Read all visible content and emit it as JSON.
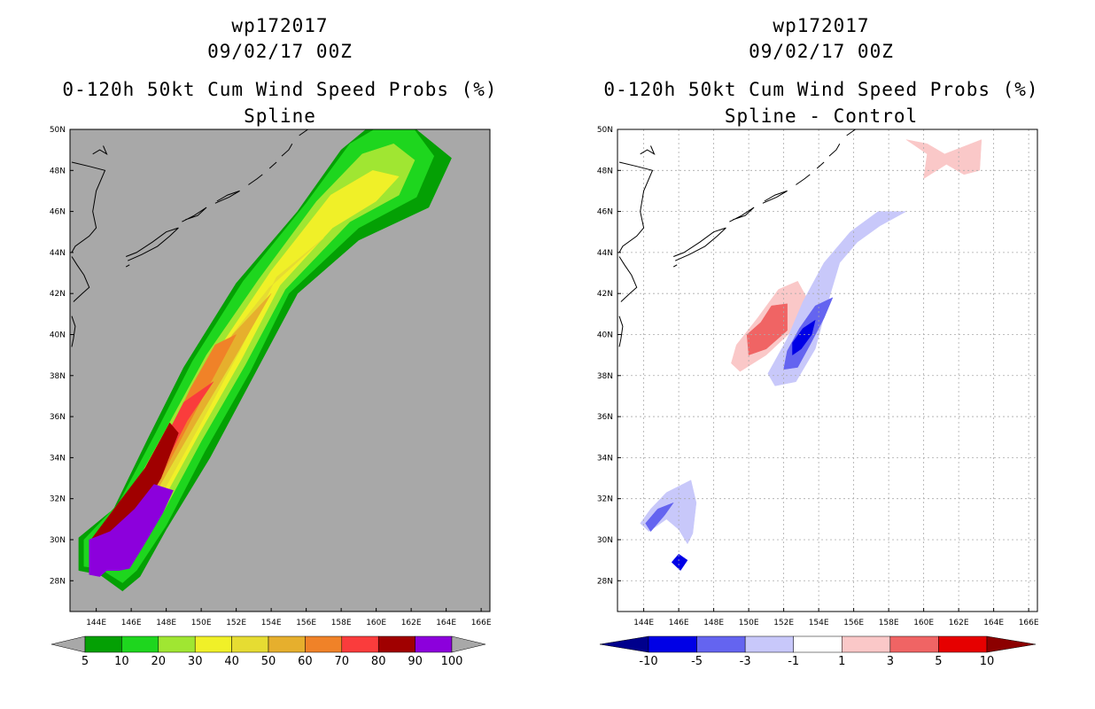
{
  "chart_data": [
    {
      "type": "contour-map",
      "title_lines": [
        "wp172017",
        "09/02/17 00Z",
        "0-120h 50kt Cum Wind Speed Probs (%)",
        "Spline"
      ],
      "lon_ticks": [
        "144E",
        "146E",
        "148E",
        "150E",
        "152E",
        "154E",
        "156E",
        "158E",
        "160E",
        "162E",
        "164E",
        "166E"
      ],
      "lat_ticks": [
        "28N",
        "30N",
        "32N",
        "34N",
        "36N",
        "38N",
        "40N",
        "42N",
        "44N",
        "46N",
        "48N",
        "50N"
      ],
      "lon_range": [
        142.5,
        166.5
      ],
      "lat_range": [
        26.5,
        50.0
      ],
      "background": "#a8a8a8",
      "colorbar": {
        "labels": [
          "5",
          "10",
          "20",
          "30",
          "40",
          "50",
          "60",
          "70",
          "80",
          "90",
          "100"
        ],
        "colors": [
          "#04a004",
          "#1ed61e",
          "#a0e632",
          "#f0f028",
          "#e6dc32",
          "#e6af2d",
          "#f08228",
          "#fa3c3c",
          "#a00000",
          "#8c00dc"
        ]
      },
      "bands": [
        {
          "level": 5,
          "color": "#04a004",
          "polygon": [
            [
              162,
              50.2
            ],
            [
              164.3,
              48.6
            ],
            [
              163,
              46.2
            ],
            [
              159,
              44.6
            ],
            [
              155.5,
              42
            ],
            [
              153,
              38
            ],
            [
              150.5,
              34
            ],
            [
              148,
              30.5
            ],
            [
              146.5,
              28.2
            ],
            [
              145.5,
              27.5
            ],
            [
              144.2,
              28.3
            ],
            [
              143,
              28.5
            ],
            [
              143,
              30.1
            ],
            [
              145,
              31.5
            ],
            [
              147,
              35
            ],
            [
              149,
              38.4
            ],
            [
              152,
              42.5
            ],
            [
              155.5,
              46
            ],
            [
              158,
              49
            ],
            [
              159.7,
              50.2
            ]
          ]
        },
        {
          "level": 10,
          "color": "#1ed61e",
          "polygon": [
            [
              162,
              50.2
            ],
            [
              163.3,
              48.7
            ],
            [
              162.3,
              46.7
            ],
            [
              159,
              45.2
            ],
            [
              155,
              42
            ],
            [
              152.8,
              38.2
            ],
            [
              150.2,
              34.3
            ],
            [
              148,
              30.7
            ],
            [
              146.3,
              28.5
            ],
            [
              145.5,
              27.9
            ],
            [
              144.2,
              28.6
            ],
            [
              143.3,
              28.7
            ],
            [
              143.3,
              30
            ],
            [
              145.3,
              31.8
            ],
            [
              147.4,
              35.2
            ],
            [
              149.5,
              38.7
            ],
            [
              152.4,
              42.6
            ],
            [
              156,
              46.4
            ],
            [
              158.5,
              49.3
            ],
            [
              160.3,
              50.2
            ]
          ]
        },
        {
          "level": 20,
          "color": "#a0e632",
          "polygon": [
            [
              162.2,
              48.5
            ],
            [
              161.3,
              46.8
            ],
            [
              158.5,
              45.5
            ],
            [
              154.8,
              42.2
            ],
            [
              152.5,
              38.5
            ],
            [
              150,
              34.8
            ],
            [
              147.8,
              31.3
            ],
            [
              146,
              29
            ],
            [
              144.4,
              29.2
            ],
            [
              143.6,
              29.9
            ],
            [
              145.8,
              32
            ],
            [
              148,
              35.4
            ],
            [
              150.3,
              39
            ],
            [
              153.3,
              42.7
            ],
            [
              156.6,
              46.5
            ],
            [
              159.2,
              48.8
            ],
            [
              161,
              49.3
            ]
          ]
        },
        {
          "level": 30,
          "color": "#f0f028",
          "polygon": [
            [
              161.3,
              47.7
            ],
            [
              160,
              46.5
            ],
            [
              157.5,
              45.2
            ],
            [
              154.5,
              42.4
            ],
            [
              152.3,
              38.8
            ],
            [
              149.9,
              35.2
            ],
            [
              147.6,
              31.6
            ],
            [
              145.9,
              29.4
            ],
            [
              144.4,
              29.8
            ],
            [
              146.3,
              32.3
            ],
            [
              148.6,
              35.7
            ],
            [
              151,
              39.3
            ],
            [
              154,
              43.1
            ],
            [
              157.4,
              46.8
            ],
            [
              159.8,
              48
            ]
          ]
        },
        {
          "level": 40,
          "color": "#e6dc32",
          "polygon": [
            [
              157,
              44.7
            ],
            [
              154.3,
              42.8
            ],
            [
              152.2,
              39.2
            ],
            [
              150,
              35.7
            ],
            [
              147.6,
              32
            ],
            [
              146,
              29.8
            ],
            [
              145,
              30.2
            ],
            [
              146.9,
              32.8
            ],
            [
              149.2,
              36.2
            ],
            [
              151.4,
              39.6
            ],
            [
              153.9,
              42.3
            ]
          ]
        },
        {
          "level": 50,
          "color": "#e6af2d",
          "polygon": [
            [
              154,
              42
            ],
            [
              152,
              39
            ],
            [
              149.9,
              36
            ],
            [
              147.6,
              32.6
            ],
            [
              146,
              30.3
            ],
            [
              145.4,
              30.4
            ],
            [
              147.4,
              33.2
            ],
            [
              149.6,
              36.7
            ],
            [
              151.8,
              40
            ]
          ]
        },
        {
          "level": 60,
          "color": "#f08228",
          "polygon": [
            [
              152,
              40
            ],
            [
              150,
              36.8
            ],
            [
              147.8,
              33.2
            ],
            [
              146.2,
              30.6
            ],
            [
              145.6,
              30.6
            ],
            [
              147.3,
              33.6
            ],
            [
              149.4,
              37.4
            ],
            [
              150.8,
              39.5
            ]
          ]
        },
        {
          "level": 70,
          "color": "#fa3c3c",
          "polygon": [
            [
              150.7,
              37.7
            ],
            [
              149.2,
              35.8
            ],
            [
              147.4,
              32.8
            ],
            [
              145.6,
              30.3
            ],
            [
              144.6,
              29.8
            ],
            [
              144.2,
              30.2
            ],
            [
              145.4,
              31.3
            ],
            [
              147.2,
              33.7
            ],
            [
              149,
              36.7
            ]
          ]
        },
        {
          "level": 80,
          "color": "#a00000",
          "polygon": [
            [
              148.7,
              35.2
            ],
            [
              147.7,
              33
            ],
            [
              146.2,
              30.8
            ],
            [
              144.2,
              29.8
            ],
            [
              143.7,
              30
            ],
            [
              145.2,
              31.7
            ],
            [
              146.8,
              33.5
            ],
            [
              148.2,
              35.7
            ]
          ]
        },
        {
          "level": 90,
          "color": "#8c00dc",
          "polygon": [
            [
              148.4,
              32.4
            ],
            [
              147.8,
              31.3
            ],
            [
              146.7,
              29.7
            ],
            [
              145.9,
              28.6
            ],
            [
              145.3,
              28.5
            ],
            [
              144.6,
              28.5
            ],
            [
              144.2,
              28.2
            ],
            [
              143.6,
              28.3
            ],
            [
              143.6,
              30
            ],
            [
              144.8,
              30.4
            ],
            [
              146.2,
              31.5
            ],
            [
              147.3,
              32.7
            ]
          ]
        }
      ]
    },
    {
      "type": "contour-map",
      "title_lines": [
        "wp172017",
        "09/02/17 00Z",
        "0-120h 50kt Cum Wind Speed Probs (%)",
        "Spline - Control"
      ],
      "lon_ticks": [
        "144E",
        "146E",
        "148E",
        "150E",
        "152E",
        "154E",
        "156E",
        "158E",
        "160E",
        "162E",
        "164E",
        "166E"
      ],
      "lat_ticks": [
        "28N",
        "30N",
        "32N",
        "34N",
        "36N",
        "38N",
        "40N",
        "42N",
        "44N",
        "46N",
        "48N",
        "50N"
      ],
      "lon_range": [
        142.5,
        166.5
      ],
      "lat_range": [
        26.5,
        50.0
      ],
      "background": "#ffffff",
      "colorbar": {
        "labels": [
          "-10",
          "-5",
          "-3",
          "-1",
          "1",
          "3",
          "5",
          "10"
        ],
        "colors": [
          "#00008c",
          "#0000e6",
          "#6464f0",
          "#c8c8fa",
          "#ffffff",
          "#fac8c8",
          "#f06464",
          "#e60000",
          "#8c0000"
        ]
      },
      "bands": [
        {
          "level": 1,
          "color": "#fac8c8",
          "polygon": [
            [
              161.2,
              48.8
            ],
            [
              163.3,
              49.5
            ],
            [
              163.2,
              48
            ],
            [
              162.3,
              47.8
            ],
            [
              161.3,
              48.3
            ],
            [
              160,
              47.6
            ],
            [
              160.2,
              48.8
            ],
            [
              159,
              49.5
            ],
            [
              160.2,
              49.3
            ]
          ]
        },
        {
          "level": 1,
          "color": "#fac8c8",
          "polygon": [
            [
              152.8,
              42.6
            ],
            [
              153.5,
              41.5
            ],
            [
              152.5,
              40.2
            ],
            [
              151,
              39
            ],
            [
              149.5,
              38.2
            ],
            [
              149,
              38.6
            ],
            [
              149.3,
              39.5
            ],
            [
              150.5,
              40.8
            ],
            [
              151.7,
              42.2
            ]
          ]
        },
        {
          "level": 3,
          "color": "#f06464",
          "polygon": [
            [
              152.2,
              41.5
            ],
            [
              152.2,
              40.2
            ],
            [
              151,
              39.3
            ],
            [
              150,
              39
            ],
            [
              149.9,
              40
            ],
            [
              150.7,
              40.6
            ],
            [
              151.3,
              41.4
            ]
          ]
        },
        {
          "level": -1,
          "color": "#c8c8fa",
          "polygon": [
            [
              159,
              46
            ],
            [
              157.5,
              45.3
            ],
            [
              156.2,
              44.5
            ],
            [
              155.2,
              43.5
            ],
            [
              154.5,
              41.5
            ],
            [
              153.8,
              39.3
            ],
            [
              152.7,
              37.7
            ],
            [
              151.5,
              37.5
            ],
            [
              151.1,
              38.1
            ],
            [
              152.2,
              39.8
            ],
            [
              153.1,
              41.6
            ],
            [
              154.3,
              43.5
            ],
            [
              155.8,
              45
            ],
            [
              157.4,
              46
            ]
          ]
        },
        {
          "level": -3,
          "color": "#6464f0",
          "polygon": [
            [
              154.8,
              41.8
            ],
            [
              154.3,
              40.8
            ],
            [
              153.5,
              39.5
            ],
            [
              152.8,
              38.4
            ],
            [
              152,
              38.3
            ],
            [
              152.2,
              39.2
            ],
            [
              152.9,
              40.3
            ],
            [
              153.8,
              41.4
            ]
          ]
        },
        {
          "level": -5,
          "color": "#0000e6",
          "polygon": [
            [
              153.8,
              40.7
            ],
            [
              153.6,
              40
            ],
            [
              153,
              39.3
            ],
            [
              152.5,
              39
            ],
            [
              152.5,
              39.6
            ],
            [
              153.1,
              40.3
            ]
          ]
        },
        {
          "level": -1,
          "color": "#c8c8fa",
          "polygon": [
            [
              146.7,
              32.9
            ],
            [
              147,
              31.8
            ],
            [
              146.8,
              30.3
            ],
            [
              146.5,
              29.8
            ],
            [
              146,
              30.5
            ],
            [
              145.3,
              31
            ],
            [
              144.3,
              30.4
            ],
            [
              143.8,
              30.8
            ],
            [
              144.4,
              31.5
            ],
            [
              145.3,
              32.3
            ]
          ]
        },
        {
          "level": -3,
          "color": "#6464f0",
          "polygon": [
            [
              145.7,
              31.8
            ],
            [
              145.2,
              31.2
            ],
            [
              144.4,
              30.4
            ],
            [
              144.1,
              30.8
            ],
            [
              144.8,
              31.5
            ]
          ]
        },
        {
          "level": -5,
          "color": "#0000e6",
          "polygon": [
            [
              146.5,
              29
            ],
            [
              146,
              29.3
            ],
            [
              145.6,
              28.9
            ],
            [
              146.1,
              28.5
            ]
          ]
        }
      ]
    }
  ]
}
